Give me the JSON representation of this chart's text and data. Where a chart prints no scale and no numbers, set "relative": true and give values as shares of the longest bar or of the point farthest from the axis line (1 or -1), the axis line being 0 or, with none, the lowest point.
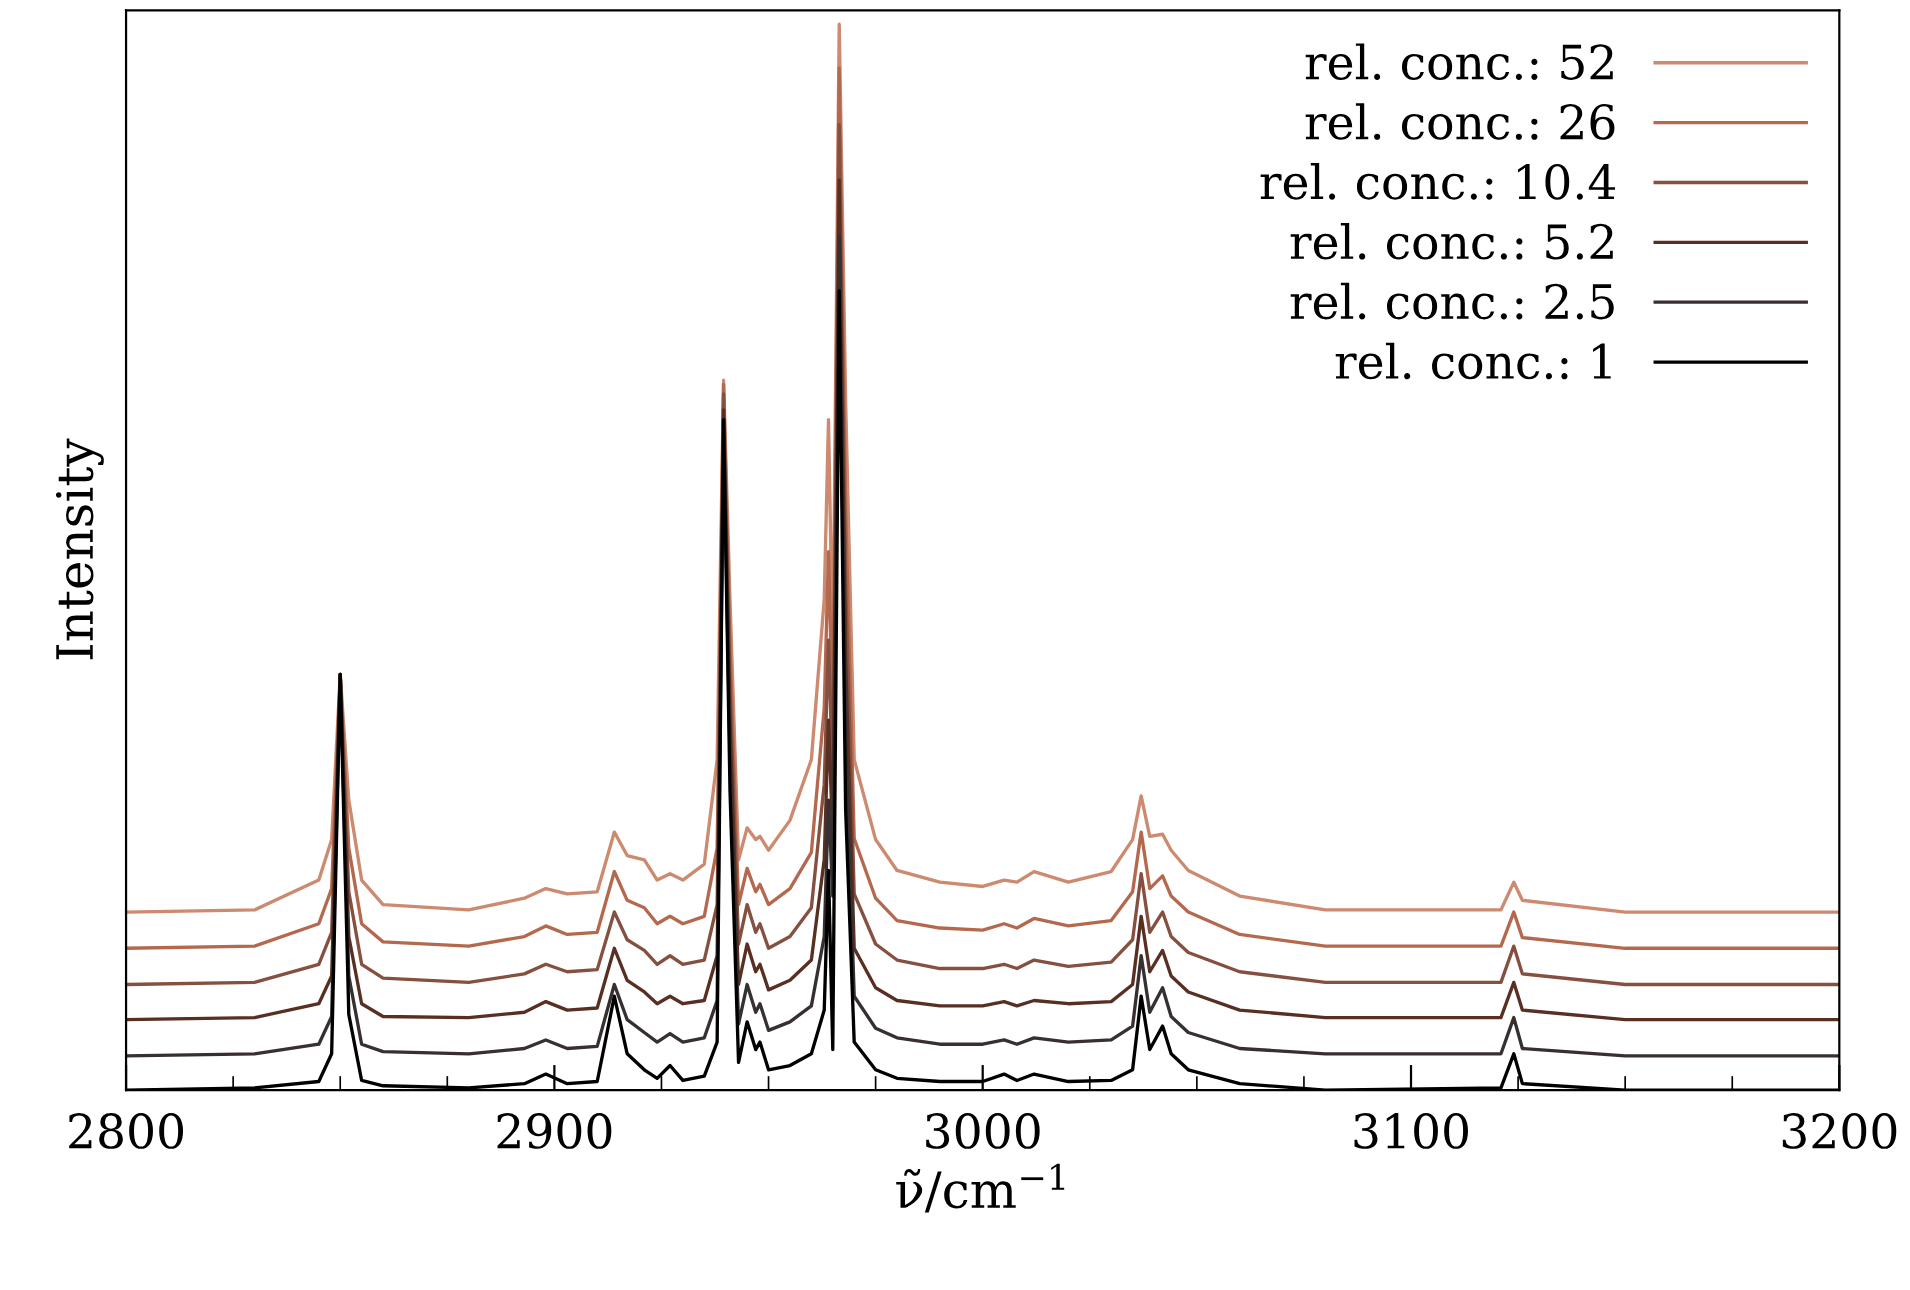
{
  "chart_data": {
    "type": "line",
    "relative": true,
    "xlabel": "ν̃/cm$^{−1}$",
    "ylabel": "Intensity",
    "xlim": [
      2800,
      3200
    ],
    "xticks": [
      2800,
      2900,
      3000,
      3100,
      3200
    ],
    "legend": "top right",
    "grid": false,
    "x": [
      2800,
      2830,
      2845,
      2848,
      2850,
      2852,
      2855,
      2860,
      2880,
      2893,
      2898,
      2903,
      2910,
      2914,
      2917,
      2921,
      2924,
      2927,
      2930,
      2935,
      2938,
      2939.5,
      2941,
      2943,
      2945,
      2947,
      2948,
      2950,
      2955,
      2960,
      2963,
      2964,
      2965,
      2966.5,
      2968,
      2970,
      2975,
      2980,
      2990,
      3000,
      3005,
      3008,
      3012,
      3020,
      3030,
      3035,
      3037,
      3039,
      3042,
      3044,
      3048,
      3060,
      3080,
      3121,
      3124,
      3126,
      3150,
      3200
    ],
    "series": [
      {
        "name": "rel. conc.: 52",
        "color": "#cc8a70",
        "values": [
          0.167,
          0.169,
          0.197,
          0.235,
          0.39,
          0.272,
          0.197,
          0.174,
          0.169,
          0.18,
          0.189,
          0.184,
          0.186,
          0.242,
          0.22,
          0.216,
          0.197,
          0.203,
          0.197,
          0.212,
          0.31,
          0.666,
          0.46,
          0.216,
          0.246,
          0.235,
          0.238,
          0.225,
          0.253,
          0.31,
          0.46,
          0.629,
          0.403,
          1.0,
          0.647,
          0.31,
          0.235,
          0.206,
          0.195,
          0.191,
          0.197,
          0.195,
          0.205,
          0.195,
          0.205,
          0.235,
          0.276,
          0.238,
          0.24,
          0.225,
          0.206,
          0.182,
          0.169,
          0.169,
          0.195,
          0.178,
          0.167,
          0.167
        ]
      },
      {
        "name": "rel. conc.: 26",
        "color": "#b4694f",
        "values": [
          0.133,
          0.135,
          0.156,
          0.189,
          0.39,
          0.227,
          0.156,
          0.139,
          0.135,
          0.144,
          0.154,
          0.146,
          0.148,
          0.205,
          0.178,
          0.171,
          0.156,
          0.163,
          0.156,
          0.163,
          0.227,
          0.662,
          0.415,
          0.174,
          0.208,
          0.186,
          0.193,
          0.174,
          0.189,
          0.223,
          0.358,
          0.505,
          0.34,
          0.959,
          0.546,
          0.236,
          0.18,
          0.159,
          0.152,
          0.15,
          0.156,
          0.152,
          0.161,
          0.154,
          0.159,
          0.186,
          0.242,
          0.189,
          0.201,
          0.182,
          0.167,
          0.146,
          0.135,
          0.135,
          0.167,
          0.143,
          0.133,
          0.133
        ]
      },
      {
        "name": "rel. conc.: 10.4",
        "color": "#85503f",
        "values": [
          0.099,
          0.101,
          0.118,
          0.148,
          0.39,
          0.186,
          0.118,
          0.105,
          0.101,
          0.109,
          0.118,
          0.111,
          0.113,
          0.167,
          0.141,
          0.131,
          0.118,
          0.126,
          0.118,
          0.122,
          0.174,
          0.653,
          0.381,
          0.137,
          0.174,
          0.148,
          0.156,
          0.133,
          0.144,
          0.171,
          0.287,
          0.422,
          0.287,
          0.906,
          0.475,
          0.184,
          0.137,
          0.122,
          0.114,
          0.114,
          0.118,
          0.114,
          0.122,
          0.116,
          0.12,
          0.141,
          0.203,
          0.148,
          0.167,
          0.144,
          0.129,
          0.111,
          0.101,
          0.101,
          0.135,
          0.109,
          0.099,
          0.099
        ]
      },
      {
        "name": "rel. conc.: 5.2",
        "color": "#582f22",
        "values": [
          0.066,
          0.068,
          0.081,
          0.107,
          0.39,
          0.144,
          0.081,
          0.069,
          0.068,
          0.073,
          0.083,
          0.075,
          0.077,
          0.133,
          0.103,
          0.092,
          0.081,
          0.088,
          0.081,
          0.084,
          0.126,
          0.638,
          0.347,
          0.099,
          0.137,
          0.111,
          0.118,
          0.094,
          0.103,
          0.122,
          0.216,
          0.347,
          0.235,
          0.854,
          0.403,
          0.133,
          0.096,
          0.084,
          0.079,
          0.079,
          0.083,
          0.079,
          0.084,
          0.081,
          0.083,
          0.099,
          0.163,
          0.111,
          0.131,
          0.107,
          0.092,
          0.075,
          0.068,
          0.068,
          0.101,
          0.075,
          0.066,
          0.066
        ]
      },
      {
        "name": "rel. conc.: 2.5",
        "color": "#383030",
        "values": [
          0.032,
          0.034,
          0.043,
          0.069,
          0.39,
          0.107,
          0.043,
          0.036,
          0.034,
          0.039,
          0.047,
          0.039,
          0.041,
          0.099,
          0.066,
          0.054,
          0.045,
          0.053,
          0.045,
          0.049,
          0.084,
          0.629,
          0.313,
          0.062,
          0.099,
          0.073,
          0.081,
          0.056,
          0.064,
          0.079,
          0.144,
          0.272,
          0.182,
          0.801,
          0.332,
          0.088,
          0.058,
          0.049,
          0.043,
          0.043,
          0.047,
          0.043,
          0.049,
          0.045,
          0.047,
          0.06,
          0.126,
          0.073,
          0.096,
          0.069,
          0.054,
          0.039,
          0.034,
          0.034,
          0.068,
          0.039,
          0.032,
          0.032
        ]
      },
      {
        "name": "rel. conc.: 1",
        "color": "#000000",
        "values": [
          0,
          0.002,
          0.008,
          0.034,
          0.39,
          0.071,
          0.009,
          0.004,
          0.002,
          0.006,
          0.015,
          0.006,
          0.008,
          0.088,
          0.034,
          0.019,
          0.011,
          0.023,
          0.009,
          0.013,
          0.045,
          0.629,
          0.281,
          0.026,
          0.064,
          0.038,
          0.045,
          0.019,
          0.023,
          0.034,
          0.075,
          0.206,
          0.038,
          0.75,
          0.263,
          0.045,
          0.019,
          0.011,
          0.008,
          0.008,
          0.015,
          0.009,
          0.015,
          0.008,
          0.009,
          0.019,
          0.088,
          0.038,
          0.06,
          0.034,
          0.019,
          0.006,
          0,
          0.002,
          0.034,
          0.006,
          0,
          0
        ]
      }
    ]
  }
}
